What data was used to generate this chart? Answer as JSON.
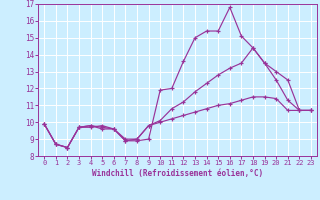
{
  "xlabel": "Windchill (Refroidissement éolien,°C)",
  "bg_color": "#cceeff",
  "grid_color": "#ffffff",
  "line_color": "#993399",
  "xlim": [
    -0.5,
    23.5
  ],
  "ylim": [
    8,
    17
  ],
  "yticks": [
    8,
    9,
    10,
    11,
    12,
    13,
    14,
    15,
    16,
    17
  ],
  "xticks": [
    0,
    1,
    2,
    3,
    4,
    5,
    6,
    7,
    8,
    9,
    10,
    11,
    12,
    13,
    14,
    15,
    16,
    17,
    18,
    19,
    20,
    21,
    22,
    23
  ],
  "series": [
    [
      9.9,
      8.7,
      8.5,
      9.7,
      9.7,
      9.8,
      9.6,
      8.9,
      8.9,
      9.0,
      11.9,
      12.0,
      13.6,
      15.0,
      15.4,
      15.4,
      16.8,
      15.1,
      14.4,
      13.5,
      12.5,
      11.3,
      10.7,
      10.7
    ],
    [
      9.9,
      8.7,
      8.5,
      9.7,
      9.8,
      9.7,
      9.6,
      8.9,
      9.0,
      9.8,
      10.1,
      10.8,
      11.2,
      11.8,
      12.3,
      12.8,
      13.2,
      13.5,
      14.4,
      13.5,
      13.0,
      12.5,
      10.7,
      10.7
    ],
    [
      9.9,
      8.7,
      8.5,
      9.7,
      9.8,
      9.6,
      9.6,
      9.0,
      9.0,
      9.8,
      10.0,
      10.2,
      10.4,
      10.6,
      10.8,
      11.0,
      11.1,
      11.3,
      11.5,
      11.5,
      11.4,
      10.7,
      10.7,
      10.7
    ]
  ]
}
